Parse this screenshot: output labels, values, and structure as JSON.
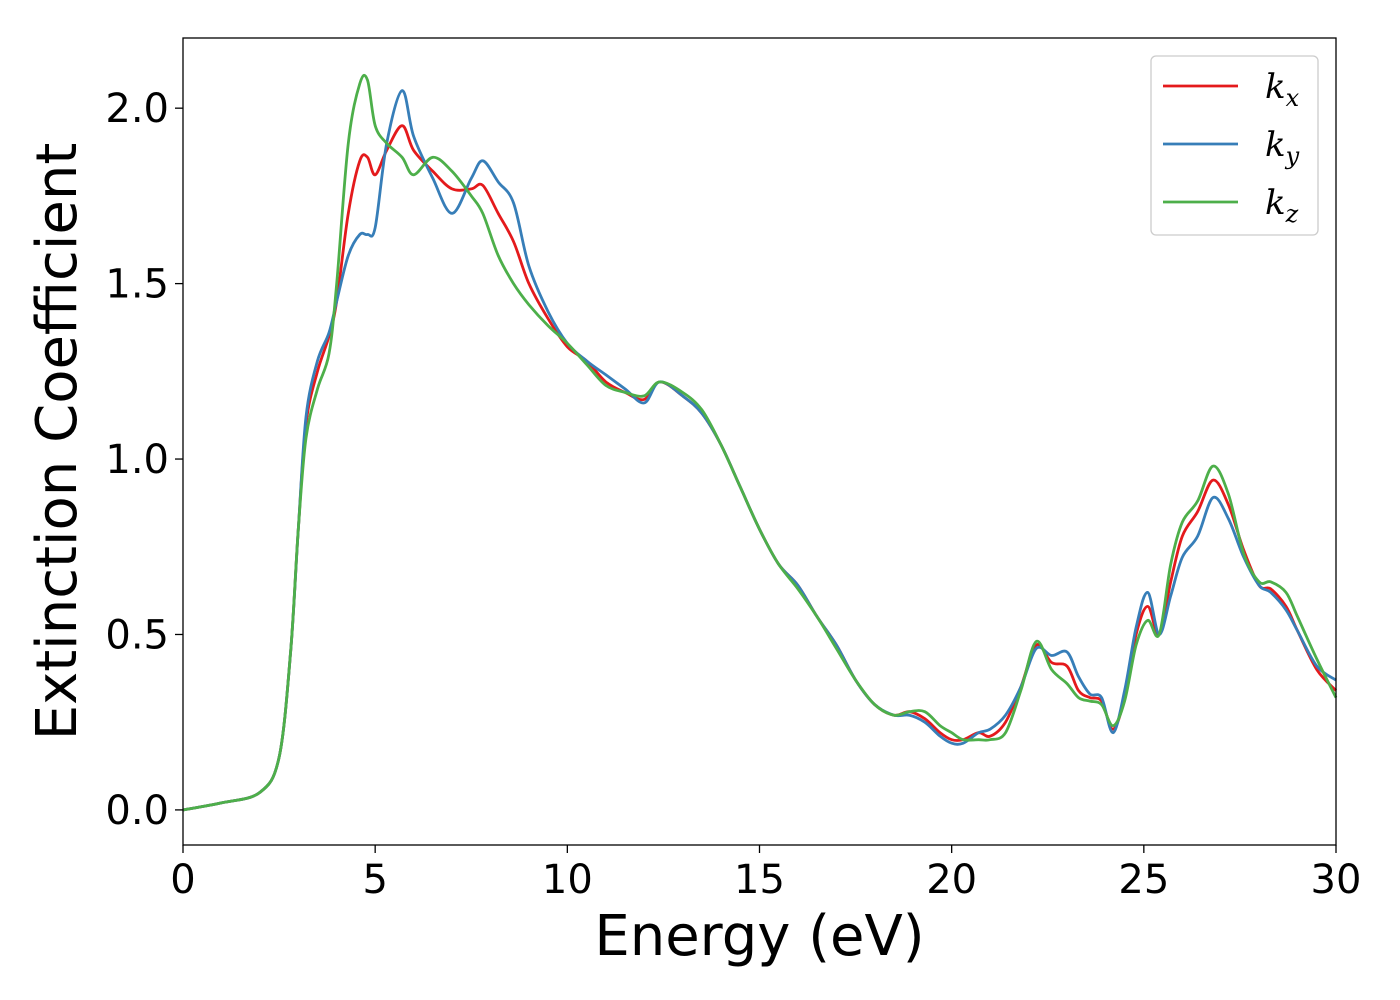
{
  "chart_data": {
    "type": "line",
    "xlabel": "Energy (eV)",
    "ylabel": "Extinction Coefficient",
    "xlim": [
      0,
      30
    ],
    "ylim": [
      -0.1,
      2.2
    ],
    "xticks": [
      0,
      5,
      10,
      15,
      20,
      25,
      30
    ],
    "xtick_labels": [
      "0",
      "5",
      "10",
      "15",
      "20",
      "25",
      "30"
    ],
    "yticks": [
      0.0,
      0.5,
      1.0,
      1.5,
      2.0
    ],
    "ytick_labels": [
      "0.0",
      "0.5",
      "1.0",
      "1.5",
      "2.0"
    ],
    "grid": false,
    "legend_position": "top-right",
    "series": [
      {
        "name": "k_x",
        "label_base": "k",
        "label_sub": "x",
        "color": "#e41a1c",
        "x": [
          0,
          1,
          2,
          2.5,
          2.8,
          3.0,
          3.2,
          3.5,
          3.8,
          4.0,
          4.3,
          4.6,
          4.8,
          5.0,
          5.3,
          5.7,
          6.0,
          6.5,
          7.0,
          7.5,
          7.8,
          8.2,
          8.6,
          9.0,
          9.5,
          10.0,
          10.5,
          11.0,
          11.5,
          12.0,
          12.4,
          13.0,
          13.5,
          14.0,
          14.5,
          15.0,
          15.5,
          16.0,
          16.5,
          17.0,
          17.5,
          18.0,
          18.5,
          18.9,
          19.3,
          19.7,
          20.0,
          20.3,
          20.7,
          21.0,
          21.4,
          21.8,
          22.2,
          22.6,
          23.0,
          23.3,
          23.6,
          23.9,
          24.2,
          24.5,
          24.8,
          25.1,
          25.4,
          25.7,
          26.0,
          26.4,
          26.8,
          27.2,
          27.6,
          28.0,
          28.3,
          28.7,
          29.0,
          29.5,
          30.0
        ],
        "y": [
          0.0,
          0.02,
          0.05,
          0.15,
          0.45,
          0.8,
          1.1,
          1.25,
          1.35,
          1.45,
          1.7,
          1.85,
          1.86,
          1.81,
          1.88,
          1.95,
          1.88,
          1.82,
          1.77,
          1.77,
          1.78,
          1.7,
          1.62,
          1.5,
          1.4,
          1.32,
          1.28,
          1.22,
          1.19,
          1.17,
          1.22,
          1.18,
          1.13,
          1.04,
          0.92,
          0.8,
          0.7,
          0.64,
          0.55,
          0.47,
          0.37,
          0.3,
          0.27,
          0.28,
          0.26,
          0.22,
          0.2,
          0.2,
          0.22,
          0.21,
          0.25,
          0.35,
          0.47,
          0.42,
          0.41,
          0.34,
          0.32,
          0.31,
          0.23,
          0.32,
          0.5,
          0.58,
          0.5,
          0.65,
          0.78,
          0.85,
          0.94,
          0.87,
          0.74,
          0.64,
          0.63,
          0.58,
          0.51,
          0.4,
          0.34
        ]
      },
      {
        "name": "k_y",
        "label_base": "k",
        "label_sub": "y",
        "color": "#377eb8",
        "x": [
          0,
          1,
          2,
          2.5,
          2.8,
          3.0,
          3.2,
          3.5,
          3.8,
          4.0,
          4.3,
          4.6,
          4.8,
          5.0,
          5.3,
          5.7,
          6.0,
          6.5,
          7.0,
          7.5,
          7.8,
          8.2,
          8.6,
          9.0,
          9.5,
          10.0,
          10.5,
          11.0,
          11.5,
          12.0,
          12.4,
          13.0,
          13.5,
          14.0,
          14.5,
          15.0,
          15.5,
          16.0,
          16.5,
          17.0,
          17.5,
          18.0,
          18.5,
          18.9,
          19.3,
          19.7,
          20.0,
          20.3,
          20.7,
          21.0,
          21.4,
          21.8,
          22.2,
          22.6,
          23.0,
          23.3,
          23.6,
          23.9,
          24.2,
          24.5,
          24.8,
          25.1,
          25.4,
          25.7,
          26.0,
          26.4,
          26.8,
          27.2,
          27.6,
          28.0,
          28.3,
          28.7,
          29.0,
          29.5,
          30.0
        ],
        "y": [
          0.0,
          0.02,
          0.05,
          0.15,
          0.45,
          0.8,
          1.12,
          1.28,
          1.36,
          1.45,
          1.58,
          1.64,
          1.64,
          1.66,
          1.9,
          2.05,
          1.92,
          1.8,
          1.7,
          1.8,
          1.85,
          1.79,
          1.73,
          1.55,
          1.42,
          1.33,
          1.28,
          1.24,
          1.2,
          1.16,
          1.22,
          1.18,
          1.13,
          1.04,
          0.92,
          0.8,
          0.7,
          0.64,
          0.55,
          0.47,
          0.37,
          0.3,
          0.27,
          0.27,
          0.25,
          0.21,
          0.19,
          0.19,
          0.22,
          0.23,
          0.27,
          0.35,
          0.46,
          0.44,
          0.45,
          0.38,
          0.33,
          0.32,
          0.22,
          0.34,
          0.52,
          0.62,
          0.5,
          0.61,
          0.72,
          0.78,
          0.89,
          0.83,
          0.72,
          0.64,
          0.62,
          0.57,
          0.51,
          0.41,
          0.37
        ]
      },
      {
        "name": "k_z",
        "label_base": "k",
        "label_sub": "z",
        "color": "#4daf4a",
        "x": [
          0,
          1,
          2,
          2.5,
          2.8,
          3.0,
          3.2,
          3.5,
          3.8,
          4.0,
          4.3,
          4.6,
          4.8,
          5.0,
          5.3,
          5.7,
          6.0,
          6.5,
          7.0,
          7.5,
          7.8,
          8.2,
          8.6,
          9.0,
          9.5,
          10.0,
          10.5,
          11.0,
          11.5,
          12.0,
          12.4,
          13.0,
          13.5,
          14.0,
          14.5,
          15.0,
          15.5,
          16.0,
          16.5,
          17.0,
          17.5,
          18.0,
          18.5,
          18.9,
          19.3,
          19.7,
          20.0,
          20.3,
          20.7,
          21.0,
          21.4,
          21.8,
          22.2,
          22.6,
          23.0,
          23.3,
          23.6,
          23.9,
          24.2,
          24.5,
          24.8,
          25.1,
          25.4,
          25.7,
          26.0,
          26.4,
          26.8,
          27.2,
          27.6,
          28.0,
          28.3,
          28.7,
          29.0,
          29.5,
          30.0
        ],
        "y": [
          0.0,
          0.02,
          0.05,
          0.15,
          0.45,
          0.8,
          1.06,
          1.2,
          1.3,
          1.5,
          1.9,
          2.07,
          2.08,
          1.95,
          1.9,
          1.86,
          1.81,
          1.86,
          1.82,
          1.75,
          1.7,
          1.58,
          1.5,
          1.44,
          1.38,
          1.33,
          1.27,
          1.21,
          1.19,
          1.18,
          1.22,
          1.19,
          1.14,
          1.04,
          0.92,
          0.8,
          0.7,
          0.63,
          0.55,
          0.46,
          0.37,
          0.3,
          0.27,
          0.28,
          0.28,
          0.24,
          0.22,
          0.2,
          0.2,
          0.2,
          0.22,
          0.34,
          0.48,
          0.4,
          0.36,
          0.32,
          0.31,
          0.3,
          0.24,
          0.31,
          0.47,
          0.54,
          0.5,
          0.7,
          0.82,
          0.88,
          0.98,
          0.9,
          0.73,
          0.65,
          0.65,
          0.62,
          0.55,
          0.43,
          0.32
        ]
      }
    ]
  }
}
